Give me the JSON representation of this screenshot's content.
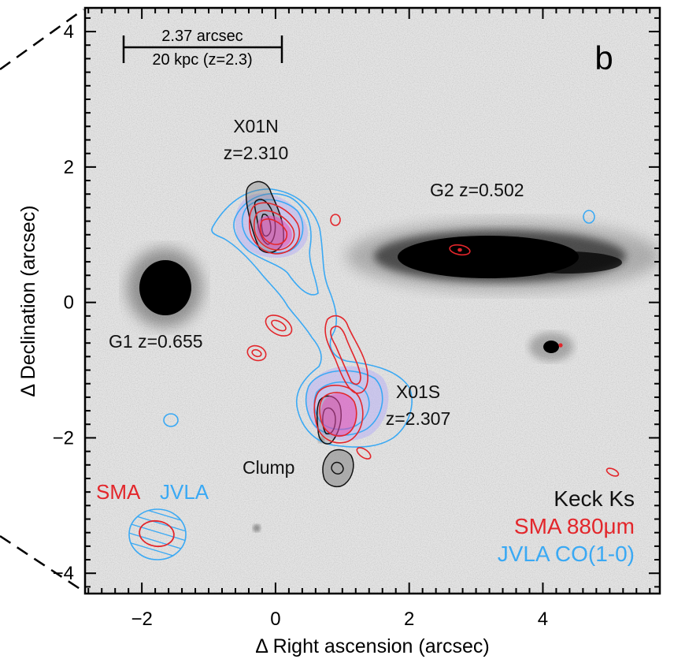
{
  "chart_data": {
    "type": "scatter",
    "panel_letter": "b",
    "xlabel": "Δ Right ascension (arcsec)",
    "ylabel": "Δ Declination (arcsec)",
    "xlim": [
      -2.85,
      5.75
    ],
    "ylim": [
      -4.3,
      4.35
    ],
    "xticks": [
      -2,
      0,
      2,
      4
    ],
    "yticks": [
      -4,
      -2,
      0,
      2,
      4
    ],
    "grid": false,
    "scale_bar": {
      "line1": "2.37 arcsec",
      "line2": "20 kpc (z=2.3)",
      "length_arcsec": 2.37
    },
    "background": "Keck Ks image (inverted grayscale)",
    "sources": [
      {
        "name": "X01N",
        "label_line1": "X01N",
        "label_line2": "z=2.310",
        "x": -0.1,
        "y": 1.05
      },
      {
        "name": "X01S",
        "label_line1": "X01S",
        "label_line2": "z=2.307",
        "x": 0.9,
        "y": -1.65
      },
      {
        "name": "G1",
        "label": "G1 z=0.655",
        "x": -1.6,
        "y": 0.15
      },
      {
        "name": "G2",
        "label": "G2 z=0.502",
        "x": 2.95,
        "y": 0.6
      },
      {
        "name": "Clump",
        "label": "Clump",
        "x": 0.9,
        "y": -2.55
      }
    ],
    "beam_labels": {
      "sma": "SMA",
      "jvla": "JVLA"
    },
    "legend": {
      "placement": "bottom-right",
      "entries": [
        {
          "label": "Keck Ks",
          "color": "#111111"
        },
        {
          "label": "SMA 880μm",
          "color": "#e3262b"
        },
        {
          "label": "JVLA CO(1-0)",
          "color": "#3aa9f4"
        }
      ]
    },
    "colors": {
      "sma": "#e3262b",
      "jvla": "#3aa9f4",
      "keck": "#111111",
      "co_fill": "#b8b0f4"
    }
  }
}
